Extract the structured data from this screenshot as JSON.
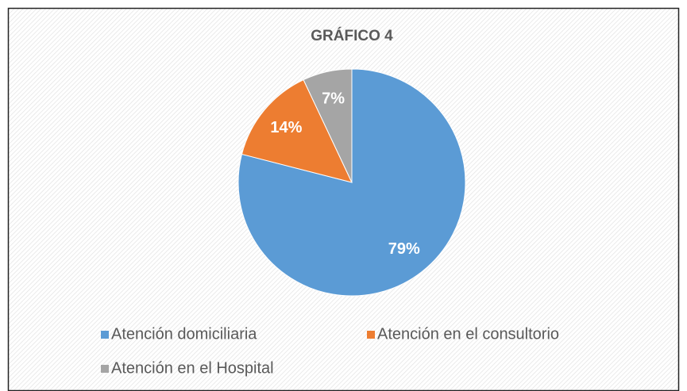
{
  "chart_data": {
    "type": "pie",
    "title": "GRÁFICO 4",
    "categories": [
      "Atención domiciliaria",
      "Atención en el consultorio",
      "Atención en el Hospital"
    ],
    "values": [
      79,
      14,
      7
    ],
    "value_labels": [
      "79%",
      "14%",
      "7%"
    ],
    "colors": [
      "#5b9bd5",
      "#ed7d31",
      "#a5a5a5"
    ],
    "legend": "bottom"
  }
}
